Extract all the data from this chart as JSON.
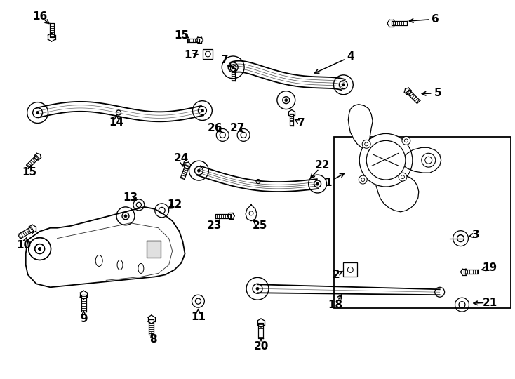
{
  "bg_color": "#ffffff",
  "line_color": "#000000",
  "fig_width": 7.34,
  "fig_height": 5.4
}
